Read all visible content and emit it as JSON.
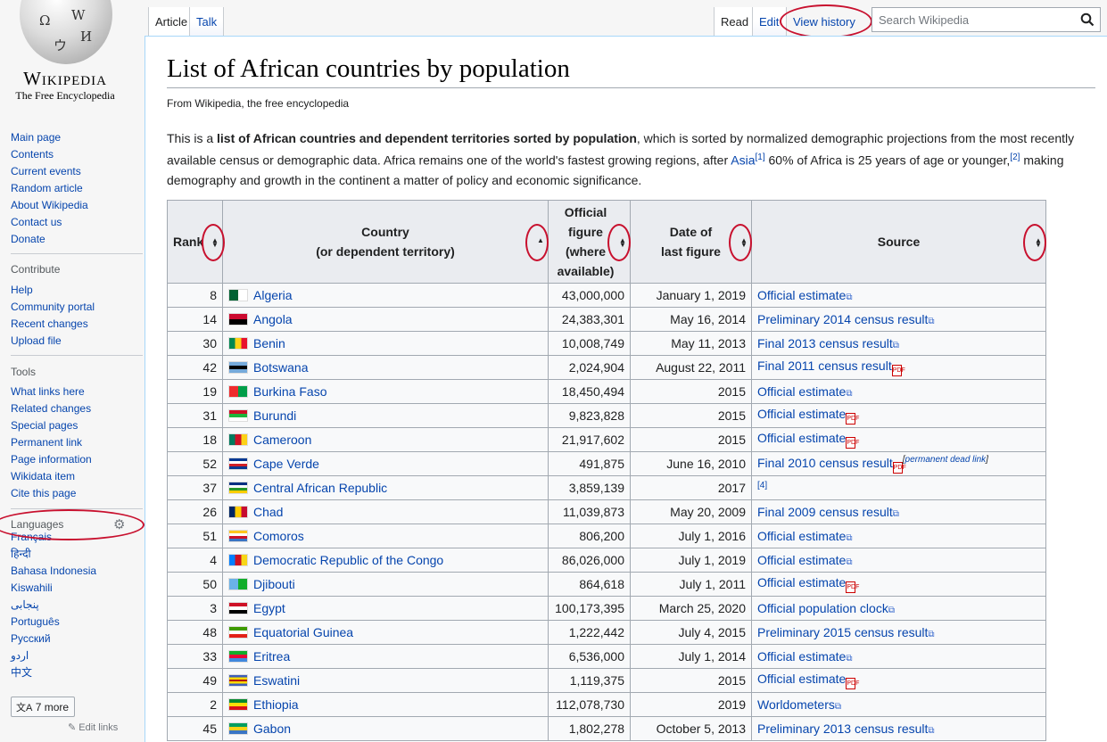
{
  "logo": {
    "wordmark": "Wikipedia",
    "tagline": "The Free Encyclopedia",
    "globe_glyphs": [
      "Ω",
      "W",
      "И",
      "ウ"
    ]
  },
  "nav": {
    "main": [
      "Main page",
      "Contents",
      "Current events",
      "Random article",
      "About Wikipedia",
      "Contact us",
      "Donate"
    ],
    "contribute_heading": "Contribute",
    "contribute": [
      "Help",
      "Community portal",
      "Recent changes",
      "Upload file"
    ],
    "tools_heading": "Tools",
    "tools": [
      "What links here",
      "Related changes",
      "Special pages",
      "Permanent link",
      "Page information",
      "Wikidata item",
      "Cite this page"
    ],
    "languages_heading": "Languages",
    "languages": [
      "Français",
      "हिन्दी",
      "Bahasa Indonesia",
      "Kiswahili",
      "پنجابی",
      "Português",
      "Русский",
      "اردو",
      "中文"
    ],
    "more_languages": "7 more",
    "edit_links": "Edit links"
  },
  "tabs": {
    "article": "Article",
    "talk": "Talk",
    "read": "Read",
    "edit": "Edit",
    "history": "View history"
  },
  "search": {
    "placeholder": "Search Wikipedia"
  },
  "page": {
    "title": "List of African countries by population",
    "from": "From Wikipedia, the free encyclopedia",
    "intro": {
      "t1": "This is a ",
      "bold": "list of African countries and dependent territories sorted by population",
      "t2": ", which is sorted by normalized demographic projections from the most recently available census or demographic data. Africa remains one of the world's fastest growing regions, after ",
      "asia": "Asia",
      "ref1": "[1]",
      "t3": " 60% of Africa is 25 years of age or younger,",
      "ref2": "[2]",
      "t4": " making demography and growth in the continent a matter of policy and economic significance."
    }
  },
  "table": {
    "headers": {
      "rank": "Rank",
      "country_1": "Country",
      "country_2": "(or dependent territory)",
      "official_1": "Official",
      "official_2": "figure",
      "official_3": "(where",
      "official_4": "available)",
      "date_1": "Date of",
      "date_2": "last figure",
      "source": "Source"
    },
    "rows": [
      {
        "rank": "8",
        "country": "Algeria",
        "figure": "43,000,000",
        "date": "January 1, 2019",
        "source": "Official estimate",
        "link": "ext"
      },
      {
        "rank": "14",
        "country": "Angola",
        "figure": "24,383,301",
        "date": "May 16, 2014",
        "source": "Preliminary 2014 census result",
        "link": "ext"
      },
      {
        "rank": "30",
        "country": "Benin",
        "figure": "10,008,749",
        "date": "May 11, 2013",
        "source": "Final 2013 census result",
        "link": "ext"
      },
      {
        "rank": "42",
        "country": "Botswana",
        "figure": "2,024,904",
        "date": "August 22, 2011",
        "source": "Final 2011 census result",
        "link": "pdf"
      },
      {
        "rank": "19",
        "country": "Burkina Faso",
        "figure": "18,450,494",
        "date": "2015",
        "source": "Official estimate",
        "link": "ext"
      },
      {
        "rank": "31",
        "country": "Burundi",
        "figure": "9,823,828",
        "date": "2015",
        "source": "Official estimate",
        "link": "pdf"
      },
      {
        "rank": "18",
        "country": "Cameroon",
        "figure": "21,917,602",
        "date": "2015",
        "source": "Official estimate",
        "link": "pdf"
      },
      {
        "rank": "52",
        "country": "Cape Verde",
        "figure": "491,875",
        "date": "June 16, 2010",
        "source": "Final 2010 census result",
        "link": "pdf",
        "dead": "permanent dead link"
      },
      {
        "rank": "37",
        "country": "Central African Republic",
        "figure": "3,859,139",
        "date": "2017",
        "source": "",
        "link": "none",
        "ref": "[4]"
      },
      {
        "rank": "26",
        "country": "Chad",
        "figure": "11,039,873",
        "date": "May 20, 2009",
        "source": "Final 2009 census result",
        "link": "ext"
      },
      {
        "rank": "51",
        "country": "Comoros",
        "figure": "806,200",
        "date": "July 1, 2016",
        "source": "Official estimate",
        "link": "ext"
      },
      {
        "rank": "4",
        "country": "Democratic Republic of the Congo",
        "figure": "86,026,000",
        "date": "July 1, 2019",
        "source": "Official estimate",
        "link": "ext"
      },
      {
        "rank": "50",
        "country": "Djibouti",
        "figure": "864,618",
        "date": "July 1, 2011",
        "source": "Official estimate",
        "link": "pdf"
      },
      {
        "rank": "3",
        "country": "Egypt",
        "figure": "100,173,395",
        "date": "March 25, 2020",
        "source": "Official population clock",
        "link": "ext"
      },
      {
        "rank": "48",
        "country": "Equatorial Guinea",
        "figure": "1,222,442",
        "date": "July 4, 2015",
        "source": "Preliminary 2015 census result",
        "link": "ext"
      },
      {
        "rank": "33",
        "country": "Eritrea",
        "figure": "6,536,000",
        "date": "July 1, 2014",
        "source": "Official estimate",
        "link": "ext"
      },
      {
        "rank": "49",
        "country": "Eswatini",
        "figure": "1,119,375",
        "date": "2015",
        "source": "Official estimate",
        "link": "pdf"
      },
      {
        "rank": "2",
        "country": "Ethiopia",
        "figure": "112,078,730",
        "date": "2019",
        "source": "Worldometers",
        "link": "ext"
      },
      {
        "rank": "45",
        "country": "Gabon",
        "figure": "1,802,278",
        "date": "October 5, 2013",
        "source": "Preliminary 2013 census result",
        "link": "ext"
      }
    ]
  },
  "flag_colors": {
    "Algeria": [
      "#006233",
      "#ffffff"
    ],
    "Angola": [
      "#cc092f",
      "#000000"
    ],
    "Benin": [
      "#008751",
      "#fcd116",
      "#e8112d"
    ],
    "Botswana": [
      "#75aadb",
      "#000000",
      "#75aadb"
    ],
    "Burkina Faso": [
      "#ef2b2d",
      "#009e49"
    ],
    "Burundi": [
      "#ce1126",
      "#1eb53a",
      "#ffffff"
    ],
    "Cameroon": [
      "#007a5e",
      "#ce1126",
      "#fcd116"
    ],
    "Cape Verde": [
      "#003893",
      "#ffffff",
      "#cf2027",
      "#003893"
    ],
    "Central African Republic": [
      "#003082",
      "#ffffff",
      "#289728",
      "#ffce00"
    ],
    "Chad": [
      "#002664",
      "#fecb00",
      "#c60c30"
    ],
    "Comoros": [
      "#ffc61e",
      "#ffffff",
      "#ce1126",
      "#3a75c4"
    ],
    "Democratic Republic of the Congo": [
      "#007fff",
      "#ce1021",
      "#f7d618"
    ],
    "Djibouti": [
      "#6ab2e7",
      "#12ad2b"
    ],
    "Egypt": [
      "#ce1126",
      "#ffffff",
      "#000000"
    ],
    "Equatorial Guinea": [
      "#3e9a00",
      "#ffffff",
      "#e32118"
    ],
    "Eritrea": [
      "#12ad2b",
      "#ea0437",
      "#4189dd"
    ],
    "Eswatini": [
      "#3e5eb9",
      "#ffd900",
      "#b10c0c",
      "#ffd900",
      "#3e5eb9"
    ],
    "Ethiopia": [
      "#078930",
      "#fcdd09",
      "#da121a"
    ],
    "Gabon": [
      "#009e60",
      "#fcd116",
      "#3a75c4"
    ]
  },
  "accent_colors": {
    "link": "#0645ad",
    "annotation": "#c8102e"
  }
}
